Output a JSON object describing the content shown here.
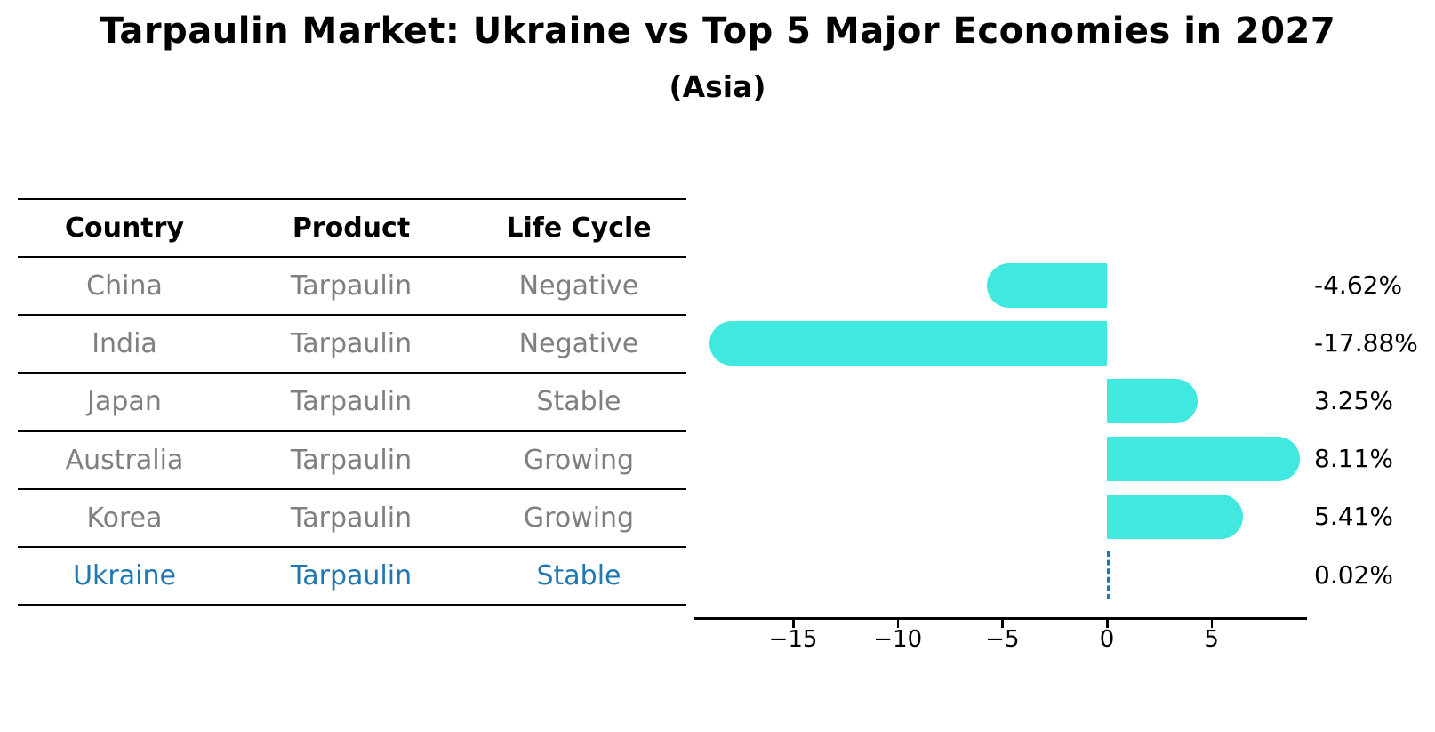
{
  "title": "Tarpaulin Market: Ukraine vs Top 5 Major Economies in 2027",
  "subtitle": "(Asia)",
  "table": {
    "headers": [
      "Country",
      "Product",
      "Life Cycle"
    ],
    "rows": [
      {
        "country": "China",
        "product": "Tarpaulin",
        "life_cycle": "Negative",
        "highlight": false
      },
      {
        "country": "India",
        "product": "Tarpaulin",
        "life_cycle": "Negative",
        "highlight": false
      },
      {
        "country": "Japan",
        "product": "Tarpaulin",
        "life_cycle": "Stable",
        "highlight": false
      },
      {
        "country": "Australia",
        "product": "Tarpaulin",
        "life_cycle": "Growing",
        "highlight": false
      },
      {
        "country": "Korea",
        "product": "Tarpaulin",
        "life_cycle": "Growing",
        "highlight": false
      },
      {
        "country": "Ukraine",
        "product": "Tarpaulin",
        "life_cycle": "Stable",
        "highlight": true
      }
    ]
  },
  "chart_data": {
    "type": "bar",
    "orientation": "horizontal",
    "title": "Tarpaulin Market: Ukraine vs Top 5 Major Economies in 2027",
    "subtitle": "(Asia)",
    "categories": [
      "China",
      "India",
      "Japan",
      "Australia",
      "Korea",
      "Ukraine"
    ],
    "values": [
      -4.62,
      -17.88,
      3.25,
      8.11,
      5.41,
      0.02
    ],
    "value_labels": [
      "-4.62%",
      "-17.88%",
      "3.25%",
      "8.11%",
      "5.41%",
      "0.02%"
    ],
    "x_ticks": [
      -15,
      -10,
      -5,
      0,
      5
    ],
    "x_tick_labels": [
      "−15",
      "−10",
      "−5",
      "0",
      "5"
    ],
    "xlim": [
      -19.7,
      9.6
    ],
    "grid": false,
    "legend": false,
    "bar_color": "#40E8E0",
    "highlight_color": "#1f77b4",
    "highlight_index": 5,
    "axis_color": "#000000",
    "text_color": "#000000",
    "table_text_color": "#7f7f7f"
  }
}
